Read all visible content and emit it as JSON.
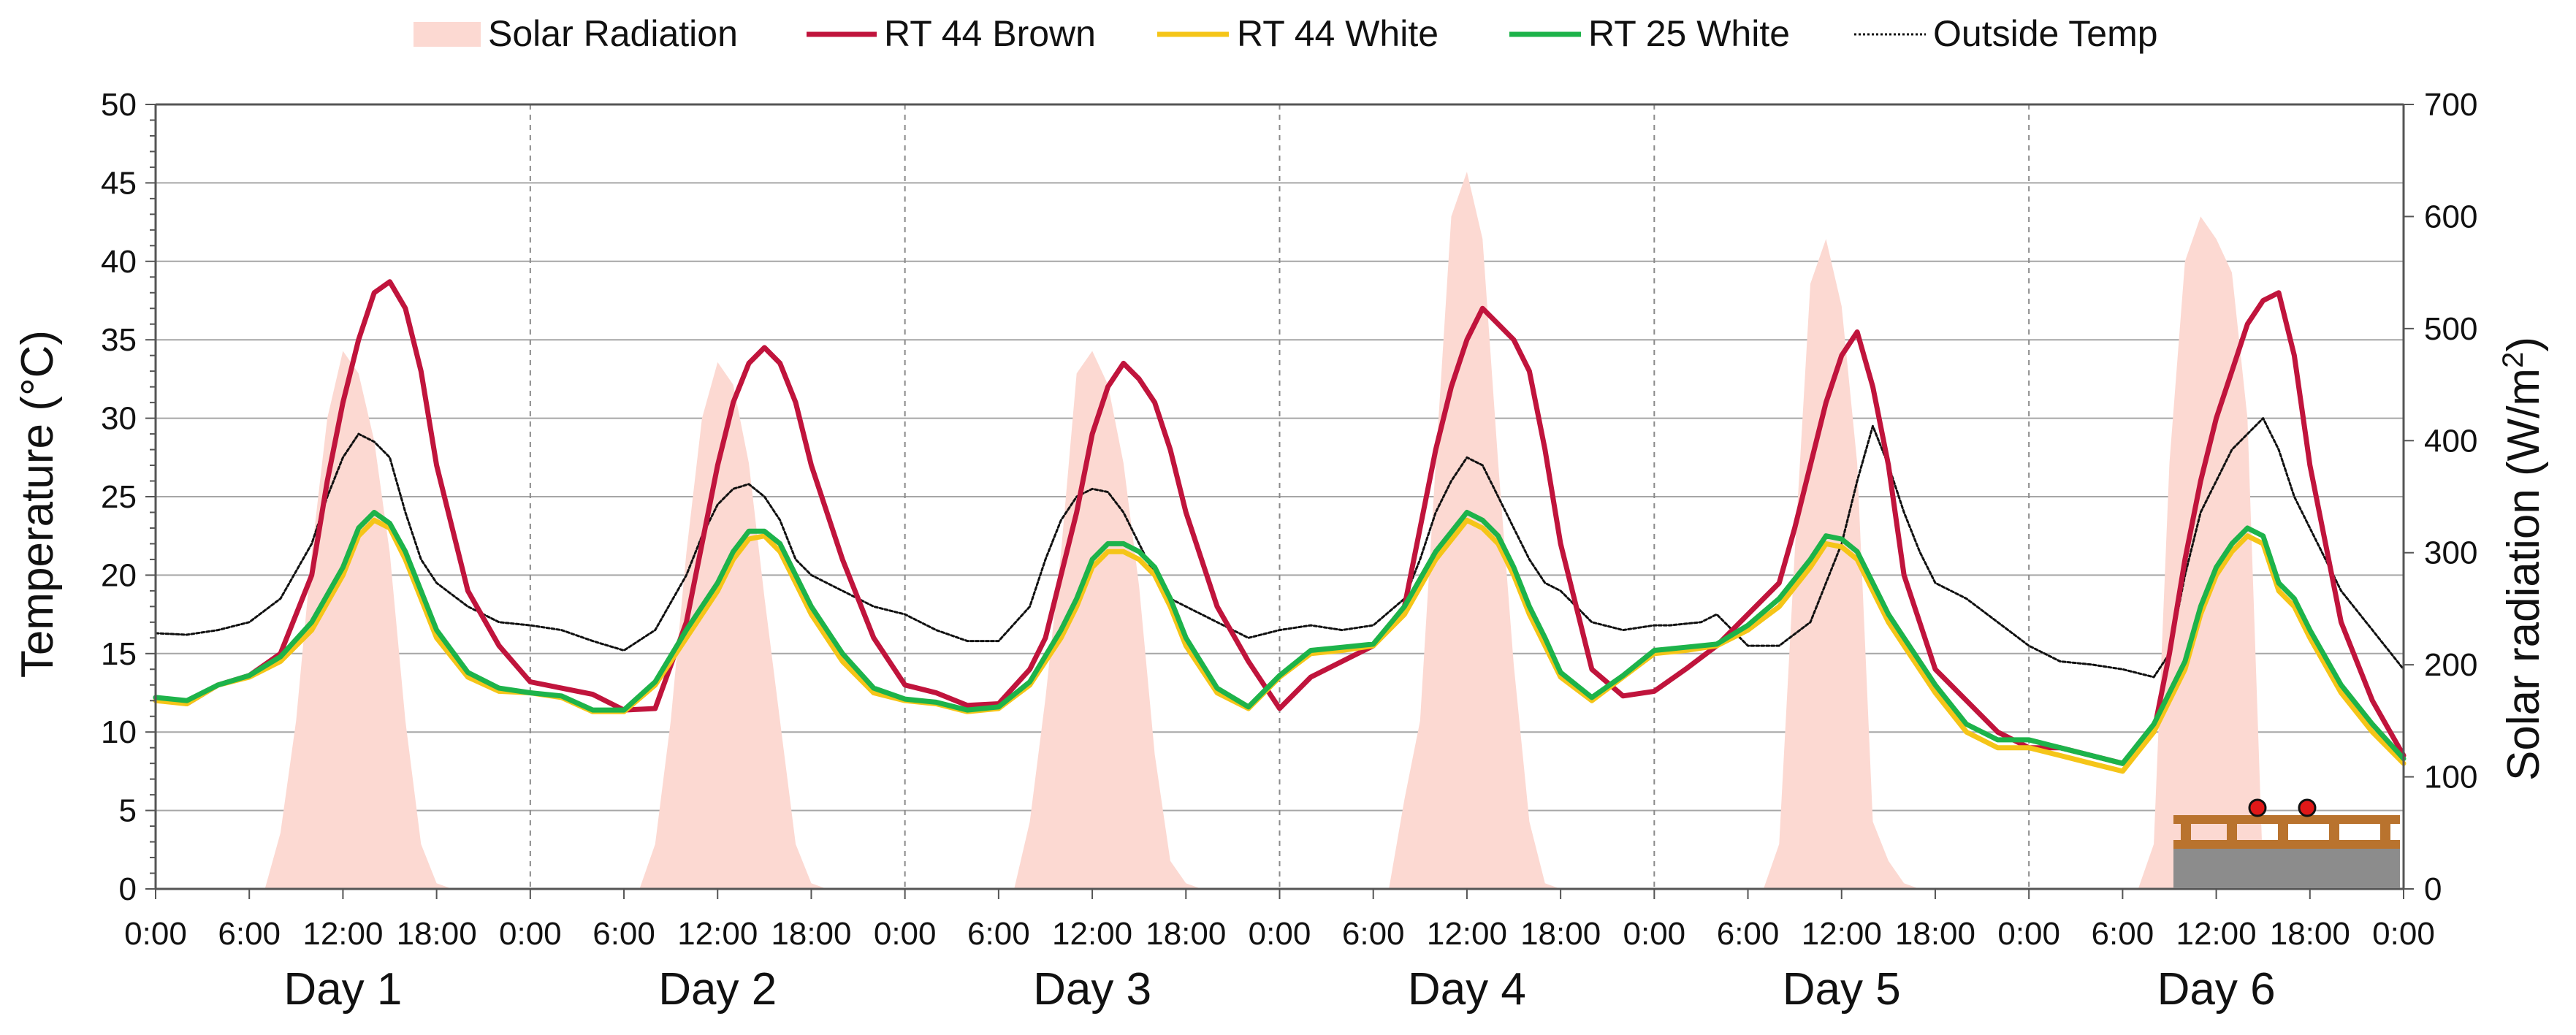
{
  "chart_data": {
    "type": "line",
    "title": "",
    "ylabel": "Temperature (°C)",
    "y2label_main": "Solar radiation (W/m",
    "y2label_sup": "2",
    "y2label_close": ")",
    "ylim": [
      0,
      50
    ],
    "y2lim": [
      0,
      700
    ],
    "yticks": [
      "0",
      "5",
      "10",
      "15",
      "20",
      "25",
      "30",
      "35",
      "40",
      "45",
      "50"
    ],
    "y2ticks": [
      "0",
      "100",
      "200",
      "300",
      "400",
      "500",
      "600",
      "700"
    ],
    "xticks": [
      "0:00",
      "6:00",
      "12:00",
      "18:00",
      "0:00",
      "6:00",
      "12:00",
      "18:00",
      "0:00",
      "6:00",
      "12:00",
      "18:00",
      "0:00",
      "6:00",
      "12:00",
      "18:00",
      "0:00",
      "6:00",
      "12:00",
      "18:00",
      "0:00",
      "6:00",
      "12:00",
      "18:00",
      "0:00"
    ],
    "days": [
      "Day 1",
      "Day 2",
      "Day 3",
      "Day 4",
      "Day 5",
      "Day 6"
    ],
    "x_unit": "hours from start",
    "legend": [
      {
        "name": "Solar Radiation",
        "style": "area",
        "color": "#fcd9d2"
      },
      {
        "name": "RT 44 Brown",
        "style": "line",
        "color": "#c0143c"
      },
      {
        "name": "RT 44 White",
        "style": "line",
        "color": "#f5c518"
      },
      {
        "name": "RT 25 White",
        "style": "line",
        "color": "#1db34a"
      },
      {
        "name": "Outside Temp",
        "style": "dotted",
        "color": "#111111"
      }
    ],
    "series": [
      {
        "name": "Solar Radiation",
        "axis": "right",
        "color": "#fcd9d2",
        "x": [
          0,
          7,
          8,
          9,
          10,
          11,
          12,
          13,
          14,
          15,
          16,
          17,
          18,
          19,
          24,
          31,
          32,
          33,
          34,
          35,
          36,
          37,
          38,
          39,
          40,
          41,
          42,
          43,
          48,
          55,
          56,
          57,
          58,
          59,
          60,
          61,
          62,
          63,
          64,
          65,
          66,
          67,
          72,
          79,
          80,
          81,
          82,
          83,
          84,
          85,
          86,
          87,
          88,
          89,
          90,
          91,
          96,
          103,
          104,
          105,
          106,
          107,
          108,
          109,
          110,
          111,
          112,
          113,
          114,
          115,
          120,
          127,
          128,
          129,
          130,
          131,
          132,
          133,
          134,
          135,
          136,
          137,
          138,
          139,
          144
        ],
        "values": [
          0,
          0,
          50,
          150,
          300,
          420,
          480,
          460,
          400,
          300,
          150,
          40,
          5,
          0,
          0,
          0,
          40,
          150,
          300,
          420,
          470,
          450,
          380,
          260,
          150,
          40,
          5,
          0,
          0,
          0,
          60,
          170,
          300,
          460,
          480,
          450,
          380,
          270,
          120,
          25,
          5,
          0,
          0,
          0,
          80,
          150,
          380,
          600,
          640,
          580,
          380,
          200,
          60,
          5,
          0,
          0,
          0,
          0,
          40,
          300,
          540,
          580,
          520,
          380,
          60,
          25,
          5,
          0,
          0,
          0,
          0,
          0,
          40,
          380,
          560,
          600,
          580,
          550,
          420,
          10,
          0,
          0,
          0,
          0,
          0
        ]
      },
      {
        "name": "RT 44 Brown",
        "axis": "left",
        "color": "#c0143c",
        "x": [
          0,
          2,
          4,
          6,
          8,
          10,
          11,
          12,
          13,
          14,
          15,
          16,
          17,
          18,
          20,
          22,
          24,
          26,
          28,
          30,
          32,
          34,
          35,
          36,
          37,
          38,
          39,
          40,
          41,
          42,
          44,
          46,
          48,
          50,
          52,
          54,
          56,
          57,
          58,
          59,
          60,
          61,
          62,
          63,
          64,
          65,
          66,
          68,
          70,
          72,
          74,
          76,
          78,
          80,
          81,
          82,
          83,
          84,
          85,
          86,
          87,
          88,
          89,
          90,
          92,
          94,
          96,
          98,
          100,
          102,
          104,
          105,
          106,
          107,
          108,
          109,
          110,
          111,
          112,
          113,
          114,
          116,
          118,
          120,
          122,
          124,
          126,
          128,
          129,
          130,
          131,
          132,
          133,
          134,
          135,
          136,
          137,
          138,
          139,
          140,
          142,
          144
        ],
        "values": [
          12.2,
          11.8,
          13,
          13.6,
          15,
          20,
          26,
          31,
          35,
          38,
          38.7,
          37,
          33,
          27,
          19,
          15.5,
          13.2,
          12.8,
          12.4,
          11.4,
          11.5,
          17,
          22,
          27,
          31,
          33.5,
          34.5,
          33.5,
          31,
          27,
          21,
          16,
          13,
          12.5,
          11.7,
          11.8,
          14,
          16,
          20,
          24,
          29,
          32,
          33.5,
          32.5,
          31,
          28,
          24,
          18,
          14.5,
          11.5,
          13.5,
          14.5,
          15.5,
          18,
          23,
          28,
          32,
          35,
          37,
          36,
          35,
          33,
          28,
          22,
          14,
          12.3,
          12.6,
          14,
          15.5,
          17.5,
          19.5,
          23,
          27,
          31,
          34,
          35.5,
          32,
          27,
          20,
          17,
          14,
          12,
          10,
          9,
          9,
          8.5,
          8,
          10,
          15,
          21,
          26,
          30,
          33,
          36,
          37.5,
          38,
          34,
          27,
          22,
          17,
          12,
          8.5
        ]
      },
      {
        "name": "RT 44 White",
        "axis": "left",
        "color": "#f5c518",
        "x": [
          0,
          2,
          4,
          6,
          8,
          10,
          12,
          13,
          14,
          15,
          16,
          17,
          18,
          20,
          22,
          24,
          26,
          28,
          30,
          32,
          34,
          36,
          37,
          38,
          39,
          40,
          41,
          42,
          44,
          46,
          48,
          50,
          52,
          54,
          56,
          58,
          59,
          60,
          61,
          62,
          63,
          64,
          65,
          66,
          68,
          70,
          72,
          74,
          76,
          78,
          80,
          82,
          84,
          85,
          86,
          87,
          88,
          89,
          90,
          92,
          94,
          96,
          98,
          100,
          102,
          104,
          106,
          107,
          108,
          109,
          110,
          111,
          112,
          114,
          116,
          118,
          120,
          122,
          124,
          126,
          128,
          130,
          131,
          132,
          133,
          134,
          135,
          136,
          137,
          138,
          140,
          142,
          144
        ],
        "values": [
          12,
          11.8,
          13,
          13.5,
          14.5,
          16.5,
          20,
          22.5,
          23.5,
          23,
          21,
          18.5,
          16,
          13.5,
          12.6,
          12.5,
          12.2,
          11.3,
          11.3,
          13,
          16,
          19,
          21,
          22.3,
          22.5,
          21.5,
          19.5,
          17.5,
          14.5,
          12.5,
          12,
          11.8,
          11.3,
          11.5,
          13,
          16,
          18,
          20.5,
          21.5,
          21.5,
          21,
          20,
          18,
          15.5,
          12.5,
          11.5,
          13.5,
          15,
          15.2,
          15.5,
          17.5,
          21,
          23.5,
          23,
          22,
          20,
          17.5,
          15.5,
          13.5,
          12,
          13.5,
          15,
          15.2,
          15.5,
          16.5,
          18,
          20.5,
          22,
          21.8,
          21,
          19,
          17,
          15.5,
          12.5,
          10,
          9,
          9,
          8.5,
          8,
          7.5,
          10,
          14,
          17.5,
          20,
          21.5,
          22.5,
          22,
          19,
          18,
          16,
          12.5,
          10,
          8
        ]
      },
      {
        "name": "RT 25 White",
        "axis": "left",
        "color": "#1db34a",
        "x": [
          0,
          2,
          4,
          6,
          8,
          10,
          12,
          13,
          14,
          15,
          16,
          17,
          18,
          20,
          22,
          24,
          26,
          28,
          30,
          32,
          34,
          36,
          37,
          38,
          39,
          40,
          41,
          42,
          44,
          46,
          48,
          50,
          52,
          54,
          56,
          58,
          59,
          60,
          61,
          62,
          63,
          64,
          65,
          66,
          68,
          70,
          72,
          74,
          76,
          78,
          80,
          82,
          84,
          85,
          86,
          87,
          88,
          89,
          90,
          92,
          94,
          96,
          98,
          100,
          102,
          104,
          106,
          107,
          108,
          109,
          110,
          111,
          112,
          114,
          116,
          118,
          120,
          122,
          124,
          126,
          128,
          130,
          131,
          132,
          133,
          134,
          135,
          136,
          137,
          138,
          140,
          142,
          144
        ],
        "values": [
          12.2,
          12,
          13,
          13.6,
          14.8,
          17,
          20.5,
          23,
          24,
          23.3,
          21.5,
          19,
          16.5,
          13.8,
          12.8,
          12.5,
          12.3,
          11.4,
          11.4,
          13.2,
          16.5,
          19.5,
          21.5,
          22.8,
          22.8,
          22,
          20,
          18,
          15,
          12.8,
          12.1,
          11.9,
          11.4,
          11.6,
          13.2,
          16.5,
          18.5,
          21,
          22,
          22,
          21.5,
          20.5,
          18.5,
          16,
          12.8,
          11.6,
          13.6,
          15.2,
          15.4,
          15.6,
          18,
          21.5,
          24,
          23.5,
          22.5,
          20.5,
          18,
          16,
          13.8,
          12.2,
          13.6,
          15.2,
          15.4,
          15.6,
          16.8,
          18.5,
          21,
          22.5,
          22.3,
          21.5,
          19.5,
          17.5,
          16,
          13,
          10.5,
          9.5,
          9.5,
          9,
          8.5,
          8,
          10.5,
          14.5,
          18,
          20.5,
          22,
          23,
          22.5,
          19.5,
          18.5,
          16.5,
          13,
          10.5,
          8.3
        ]
      },
      {
        "name": "Outside Temp",
        "axis": "left",
        "color": "#111111",
        "x": [
          0,
          2,
          4,
          6,
          8,
          10,
          11,
          12,
          13,
          14,
          15,
          16,
          17,
          18,
          20,
          22,
          24,
          26,
          28,
          30,
          32,
          34,
          35,
          36,
          37,
          38,
          39,
          40,
          41,
          42,
          44,
          46,
          48,
          50,
          52,
          54,
          56,
          57,
          58,
          59,
          60,
          61,
          62,
          63,
          64,
          65,
          66,
          68,
          70,
          72,
          74,
          76,
          78,
          80,
          81,
          82,
          83,
          84,
          85,
          86,
          87,
          88,
          89,
          90,
          92,
          94,
          96,
          97,
          99,
          100,
          102,
          104,
          106,
          107,
          108,
          109,
          110,
          111,
          112,
          113,
          114,
          116,
          118,
          120,
          122,
          124,
          126,
          128,
          129,
          130,
          131,
          132,
          133,
          134,
          135,
          136,
          137,
          138,
          139,
          140,
          142,
          144
        ],
        "values": [
          16.3,
          16.2,
          16.5,
          17,
          18.5,
          22,
          25,
          27.5,
          29,
          28.5,
          27.5,
          24,
          21,
          19.5,
          18,
          17,
          16.8,
          16.5,
          15.8,
          15.2,
          16.5,
          20,
          22.5,
          24.5,
          25.5,
          25.8,
          25,
          23.5,
          21,
          20,
          19,
          18,
          17.5,
          16.5,
          15.8,
          15.8,
          18,
          21,
          23.5,
          25,
          25.5,
          25.3,
          24,
          22,
          20,
          18.5,
          18,
          17,
          16,
          16.5,
          16.8,
          16.5,
          16.8,
          18.5,
          21,
          24,
          26,
          27.5,
          27,
          25,
          23,
          21,
          19.5,
          19,
          17,
          16.5,
          16.8,
          16.8,
          17,
          17.5,
          15.5,
          15.5,
          17,
          19.5,
          22,
          26,
          29.5,
          27,
          24,
          21.5,
          19.5,
          18.5,
          17,
          15.5,
          14.5,
          14.3,
          14,
          13.5,
          15,
          20,
          24,
          26,
          28,
          29,
          30,
          28,
          25,
          23,
          21,
          19,
          16.5,
          14
        ]
      }
    ],
    "inset": "roof deck icon with two red sensors"
  }
}
